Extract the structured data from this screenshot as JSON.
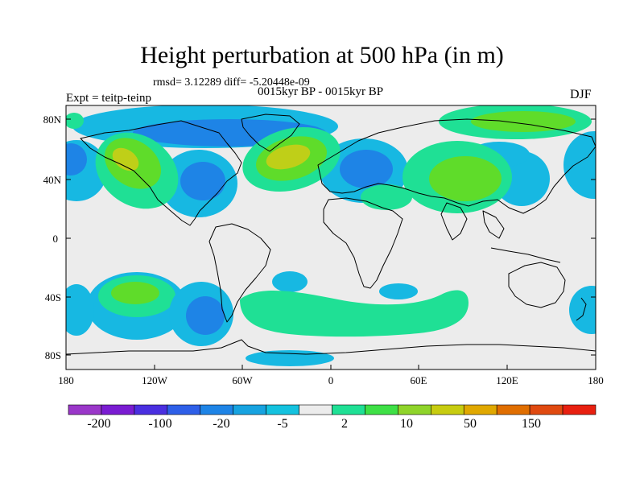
{
  "title": "Height perturbation at 500 hPa (in m)",
  "stats_line": "rmsd= 3.12289 diff= -5.20448e-09",
  "experiment_label": "Expt = teitp-teinp",
  "period_label": "0015kyr BP - 0015kyr BP",
  "season_label": "DJF",
  "lat_ticks": [
    "80N",
    "40N",
    "0",
    "40S",
    "80S"
  ],
  "lon_ticks": [
    "180",
    "120W",
    "60W",
    "0",
    "60E",
    "120E",
    "180"
  ],
  "colorbar": {
    "colors": [
      "#9a37c9",
      "#7a1cd2",
      "#4a2fe0",
      "#2e5fe8",
      "#1e84e6",
      "#17a3e0",
      "#14c2df",
      "#ececec",
      "#1fe095",
      "#3ee046",
      "#8fd42a",
      "#c7cc10",
      "#e0a800",
      "#e06e00",
      "#e04a10",
      "#e82010"
    ],
    "labels": [
      "-200",
      "-100",
      "-20",
      "-5",
      "2",
      "10",
      "50",
      "150"
    ]
  },
  "map_colors": {
    "ocean_bg": "#ececec",
    "light_blue": "#17b8e2",
    "mid_blue": "#1e84e6",
    "light_green": "#1fe095",
    "green": "#5fdc2a",
    "yellow_green": "#bfcf18"
  }
}
